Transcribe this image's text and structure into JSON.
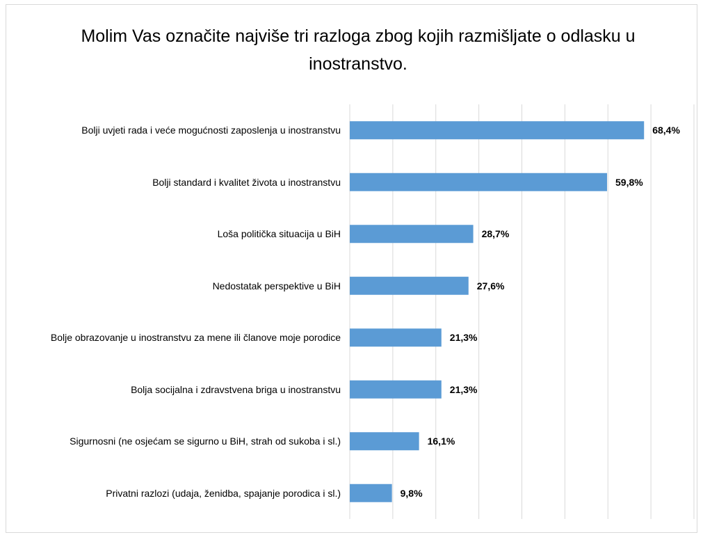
{
  "chart_data": {
    "type": "bar",
    "orientation": "horizontal",
    "title": "Molim Vas označite najviše tri razloga zbog kojih razmišljate o odlasku u inostranstvo.",
    "categories": [
      "Bolji uvjeti rada i veće mogućnosti zaposlenja u inostranstvu",
      "Bolji standard i kvalitet života u inostranstvu",
      "Loša politička situacija u BiH",
      "Nedostatak perspektive u BiH",
      "Bolje obrazovanje u inostranstvu za mene ili članove moje porodice",
      "Bolja socijalna i zdravstvena briga u inostranstvu",
      "Sigurnosni (ne osjećam se sigurno u BiH, strah od sukoba i sl.)",
      "Privatni razlozi (udaja, ženidba, spajanje porodica i sl.)"
    ],
    "values": [
      68.4,
      59.8,
      28.7,
      27.6,
      21.3,
      21.3,
      16.1,
      9.8
    ],
    "value_labels": [
      "68,4%",
      "59,8%",
      "28,7%",
      "27,6%",
      "21,3%",
      "21,3%",
      "16,1%",
      "9,8%"
    ],
    "color": "#5b9bd5",
    "xlim": [
      0,
      80
    ],
    "xticks": [
      0,
      10,
      20,
      30,
      40,
      50,
      60,
      70,
      80
    ],
    "grid": true
  }
}
